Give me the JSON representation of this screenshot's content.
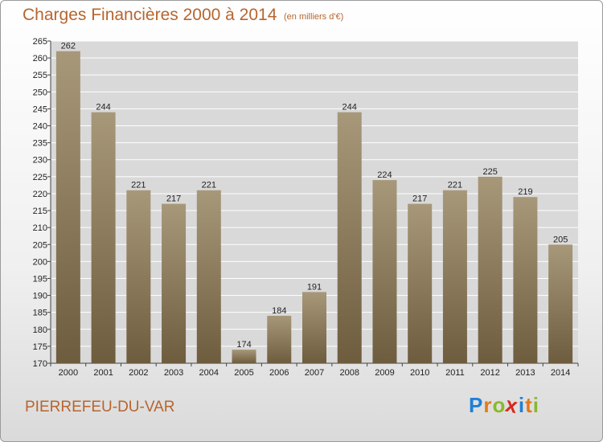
{
  "header": {
    "title": "Charges Financières 2000 à 2014",
    "subtitle": "(en milliers d'€)"
  },
  "footer": {
    "commune": "PIERREFEU-DU-VAR",
    "logo": {
      "letters": [
        "P",
        "r",
        "o",
        "x",
        "i",
        "t",
        "i"
      ],
      "colors": [
        "#1f7fd6",
        "#e07a1a",
        "#8ab82a",
        "#d8271c",
        "#1f7fd6",
        "#e07a1a",
        "#8ab82a"
      ]
    }
  },
  "colors": {
    "bar_top": "#a8987a",
    "bar_bottom": "#6e5c3e",
    "grid": "#ffffff",
    "plot_bg": "#d9d9d9"
  },
  "chart_data": {
    "type": "bar",
    "categories": [
      "2000",
      "2001",
      "2002",
      "2003",
      "2004",
      "2005",
      "2006",
      "2007",
      "2008",
      "2009",
      "2010",
      "2011",
      "2012",
      "2013",
      "2014"
    ],
    "values": [
      262,
      244,
      221,
      217,
      221,
      174,
      184,
      191,
      244,
      224,
      217,
      221,
      225,
      219,
      205
    ],
    "ylim": [
      170,
      265
    ],
    "yticks": [
      170,
      175,
      180,
      185,
      190,
      195,
      200,
      205,
      210,
      215,
      220,
      225,
      230,
      235,
      240,
      245,
      250,
      255,
      260,
      265
    ],
    "grid": true,
    "legend": "none"
  }
}
